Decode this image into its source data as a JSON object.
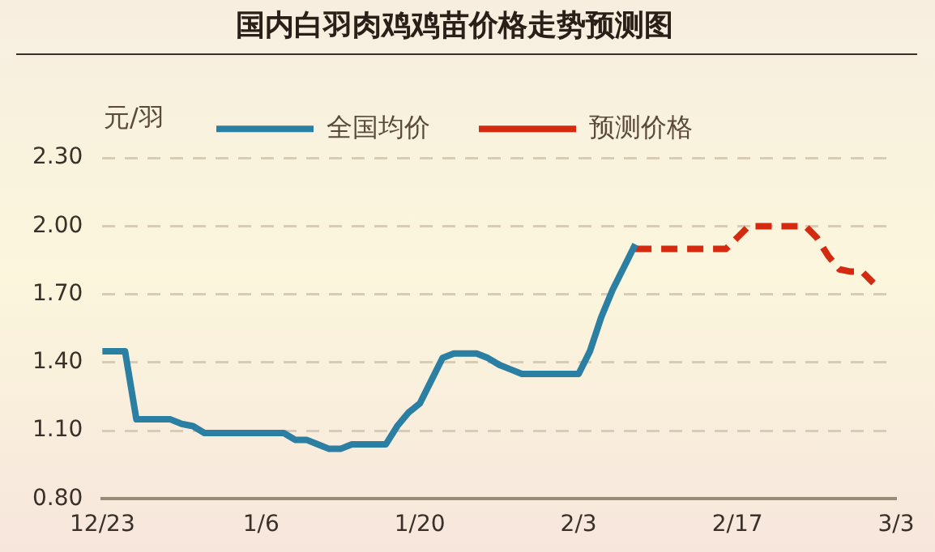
{
  "chart_data": {
    "type": "line",
    "title": "国内白羽肉鸡鸡苗价格走势预测图",
    "ylabel": "元/羽",
    "categories": [
      "12/23",
      null,
      null,
      null,
      null,
      null,
      null,
      null,
      null,
      null,
      null,
      null,
      null,
      null,
      "1/6",
      null,
      null,
      null,
      null,
      null,
      null,
      null,
      null,
      null,
      null,
      null,
      null,
      null,
      "1/20",
      null,
      null,
      null,
      null,
      null,
      null,
      null,
      null,
      null,
      null,
      null,
      null,
      null,
      "2/3",
      null,
      null,
      null,
      null,
      null,
      null,
      null,
      null,
      null,
      null,
      null,
      null,
      null,
      "2/17",
      null,
      null,
      null,
      null,
      null,
      null,
      null,
      null,
      null,
      null,
      null,
      null,
      null,
      "3/3"
    ],
    "series": [
      {
        "name": "全国均价",
        "color": "#2a7fa3",
        "line_style": "solid",
        "values": [
          1.45,
          1.45,
          1.45,
          1.15,
          1.15,
          1.15,
          1.15,
          1.13,
          1.12,
          1.09,
          1.09,
          1.09,
          1.09,
          1.09,
          1.09,
          1.09,
          1.09,
          1.06,
          1.06,
          1.04,
          1.02,
          1.02,
          1.04,
          1.04,
          1.04,
          1.04,
          1.12,
          1.18,
          1.22,
          1.32,
          1.42,
          1.44,
          1.44,
          1.44,
          1.42,
          1.39,
          1.37,
          1.35,
          1.35,
          1.35,
          1.35,
          1.35,
          1.35,
          1.45,
          1.6,
          1.72,
          1.82,
          1.92,
          null,
          null,
          null,
          null,
          null,
          null,
          null,
          null,
          null,
          null,
          null,
          null,
          null,
          null,
          null,
          null,
          null,
          null,
          null,
          null,
          null,
          null,
          null
        ]
      },
      {
        "name": "预测价格",
        "color": "#d42a10",
        "line_style": "dashed",
        "values": [
          null,
          null,
          null,
          null,
          null,
          null,
          null,
          null,
          null,
          null,
          null,
          null,
          null,
          null,
          null,
          null,
          null,
          null,
          null,
          null,
          null,
          null,
          null,
          null,
          null,
          null,
          null,
          null,
          null,
          null,
          null,
          null,
          null,
          null,
          null,
          null,
          null,
          null,
          null,
          null,
          null,
          null,
          null,
          null,
          null,
          null,
          null,
          1.9,
          1.9,
          1.9,
          1.9,
          1.9,
          1.9,
          1.9,
          1.9,
          1.9,
          1.95,
          2.0,
          2.0,
          2.0,
          2.0,
          2.0,
          2.0,
          1.95,
          1.87,
          1.81,
          1.8,
          1.8,
          1.75,
          null,
          null
        ]
      }
    ],
    "ylim": [
      0.8,
      2.3
    ],
    "yticks": [
      {
        "value": 0.8,
        "label": "0.80"
      },
      {
        "value": 1.1,
        "label": "1.10"
      },
      {
        "value": 1.4,
        "label": "1.40"
      },
      {
        "value": 1.7,
        "label": "1.70"
      },
      {
        "value": 2.0,
        "label": "2.00"
      },
      {
        "value": 2.3,
        "label": "2.30"
      }
    ],
    "grid": "y",
    "legend": "top",
    "marker": "none"
  }
}
